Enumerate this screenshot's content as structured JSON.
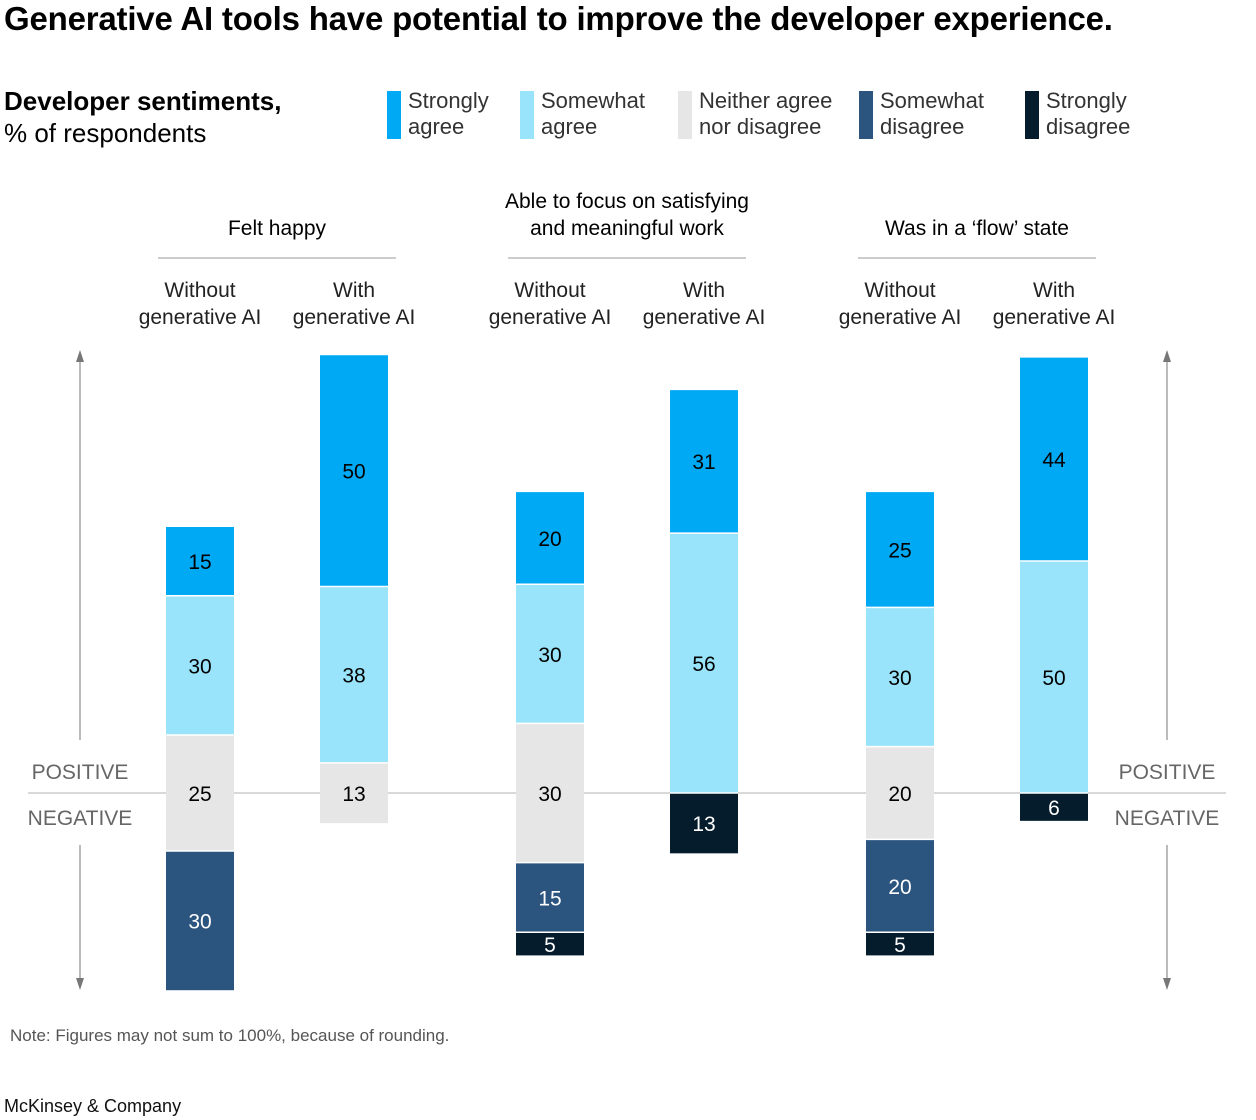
{
  "title": "Generative AI tools have potential to improve the developer experience.",
  "subtitle_bold": "Developer sentiments,",
  "subtitle": "% of respondents",
  "legend": [
    {
      "line1": "Strongly",
      "line2": "agree",
      "color": "#00a9f4"
    },
    {
      "line1": "Somewhat",
      "line2": "agree",
      "color": "#99e4fb"
    },
    {
      "line1": "Neither agree",
      "line2": "nor disagree",
      "color": "#e6e6e6"
    },
    {
      "line1": "Somewhat",
      "line2": "disagree",
      "color": "#2b557f"
    },
    {
      "line1": "Strongly",
      "line2": "disagree",
      "color": "#051c2c"
    }
  ],
  "axis": {
    "positive": "POSITIVE",
    "negative": "NEGATIVE"
  },
  "note": "Note: Figures may not sum to 100%, because of rounding.",
  "source": "McKinsey & Company",
  "chart_data": {
    "type": "bar",
    "stacking": "diverging",
    "series_names": [
      "Strongly agree",
      "Somewhat agree",
      "Neither agree nor disagree",
      "Somewhat disagree",
      "Strongly disagree"
    ],
    "groups": [
      {
        "title": [
          "Felt happy"
        ],
        "bars": [
          {
            "label": [
              "Without",
              "generative AI"
            ],
            "values": [
              15,
              30,
              25,
              30,
              0
            ]
          },
          {
            "label": [
              "With",
              "generative AI"
            ],
            "values": [
              50,
              38,
              13,
              0,
              0
            ]
          }
        ]
      },
      {
        "title": [
          "Able to focus on satisfying",
          "and meaningful work"
        ],
        "bars": [
          {
            "label": [
              "Without",
              "generative AI"
            ],
            "values": [
              20,
              30,
              30,
              15,
              5
            ]
          },
          {
            "label": [
              "With",
              "generative AI"
            ],
            "values": [
              31,
              56,
              0,
              0,
              13
            ]
          }
        ]
      },
      {
        "title": [
          "Was in a ‘flow’ state"
        ],
        "bars": [
          {
            "label": [
              "Without",
              "generative AI"
            ],
            "values": [
              25,
              30,
              20,
              20,
              5
            ]
          },
          {
            "label": [
              "With",
              "generative AI"
            ],
            "values": [
              44,
              50,
              0,
              0,
              6
            ]
          }
        ]
      }
    ]
  }
}
